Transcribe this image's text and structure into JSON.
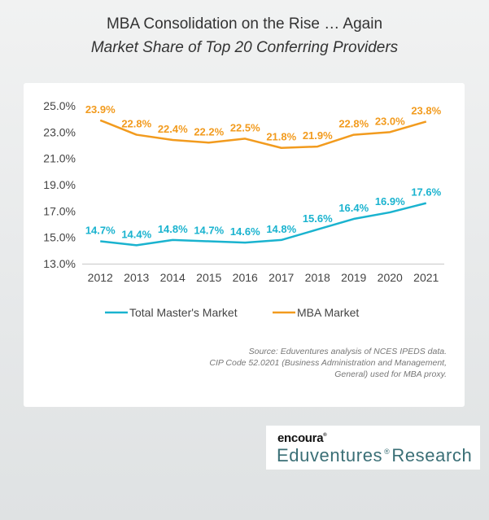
{
  "header": {
    "title": "MBA Consolidation on the Rise … Again",
    "subtitle": "Market Share of Top 20 Conferring Providers"
  },
  "chart_data": {
    "type": "line",
    "x": [
      "2012",
      "2013",
      "2014",
      "2015",
      "2016",
      "2017",
      "2018",
      "2019",
      "2020",
      "2021"
    ],
    "ylim": [
      13.0,
      25.0
    ],
    "yticks": [
      "13.0%",
      "15.0%",
      "17.0%",
      "19.0%",
      "21.0%",
      "23.0%",
      "25.0%"
    ],
    "grid": false,
    "legend_position": "bottom",
    "series": [
      {
        "name": "Total Master's Market",
        "color": "#1ab3cf",
        "values": [
          14.7,
          14.4,
          14.8,
          14.7,
          14.6,
          14.8,
          15.6,
          16.4,
          16.9,
          17.6
        ],
        "labels": [
          "14.7%",
          "14.4%",
          "14.8%",
          "14.7%",
          "14.6%",
          "14.8%",
          "15.6%",
          "16.4%",
          "16.9%",
          "17.6%"
        ]
      },
      {
        "name": "MBA Market",
        "color": "#f29b1e",
        "values": [
          23.9,
          22.8,
          22.4,
          22.2,
          22.5,
          21.8,
          21.9,
          22.8,
          23.0,
          23.8
        ],
        "labels": [
          "23.9%",
          "22.8%",
          "22.4%",
          "22.2%",
          "22.5%",
          "21.8%",
          "21.9%",
          "22.8%",
          "23.0%",
          "23.8%"
        ]
      }
    ]
  },
  "source": {
    "line1": "Source: Eduventures analysis of NCES IPEDS data.",
    "line2": "CIP Code 52.0201 (Business Administration and Management,",
    "line3": "General) used for MBA proxy."
  },
  "logo": {
    "brand": "encoura",
    "reg_mark": "®",
    "name_part1": "Eduventures",
    "name_part2": "Research"
  }
}
